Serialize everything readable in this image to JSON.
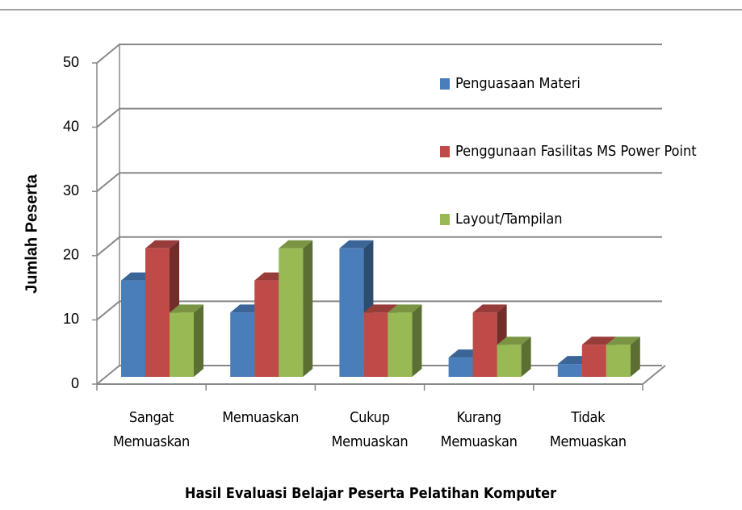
{
  "chart_data": {
    "type": "bar3d",
    "ylabel": "Jumlah Peserta",
    "xlabel": "Hasil Evaluasi Belajar Peserta Pelatihan Komputer",
    "categories": [
      "Sangat Memuaskan",
      "Memuaskan",
      "Cukup Memuaskan",
      "Kurang Memuaskan",
      "Tidak Memuaskan"
    ],
    "series": [
      {
        "name": "Penguasaan Materi",
        "color": "#4a7ebb",
        "values": [
          15,
          10,
          20,
          3,
          2
        ]
      },
      {
        "name": "Penggunaan Fasilitas MS Power Point",
        "color": "#be4b48",
        "values": [
          20,
          15,
          10,
          10,
          5
        ]
      },
      {
        "name": "Layout/Tampilan",
        "color": "#98b954",
        "values": [
          10,
          20,
          10,
          5,
          5
        ]
      }
    ],
    "ylim": [
      0,
      50
    ],
    "yticks": [
      0,
      10,
      20,
      30,
      40,
      50
    ],
    "grid": true,
    "legend": "right"
  }
}
